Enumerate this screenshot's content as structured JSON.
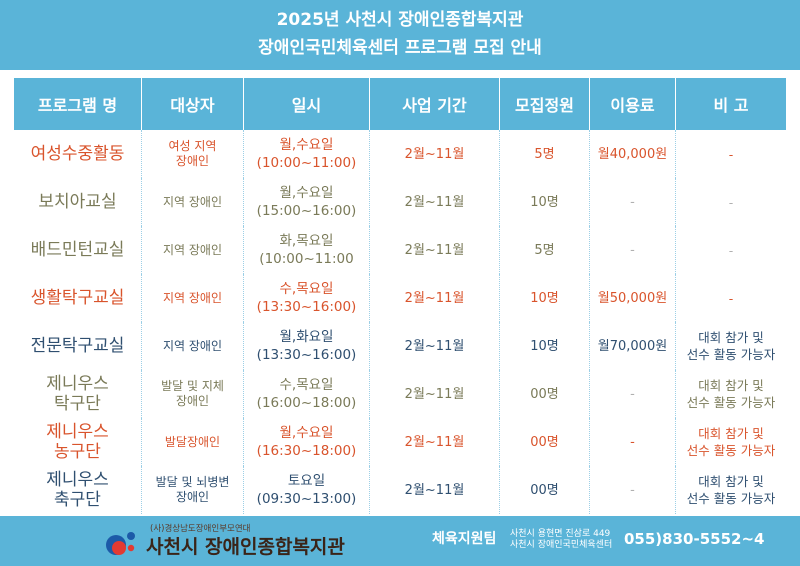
{
  "title": {
    "line1": "2025년 사천시 장애인종합복지관",
    "line2": "장애인국민체육센터 프로그램 모집 안내"
  },
  "columns": [
    "프로그램 명",
    "대상자",
    "일시",
    "사업 기간",
    "모집정원",
    "이용료",
    "비 고"
  ],
  "rows": [
    {
      "name": "여성수중활동",
      "target": "여성 지역\n장애인",
      "time": "월,수요일\n(10:00~11:00)",
      "period": "2월~11월",
      "capacity": "5명",
      "fee": "월40,000원",
      "note": "-"
    },
    {
      "name": "보치아교실",
      "target": "지역 장애인",
      "time": "월,수요일\n(15:00~16:00)",
      "period": "2월~11월",
      "capacity": "10명",
      "fee": "-",
      "note": "-"
    },
    {
      "name": "배드민턴교실",
      "target": "지역 장애인",
      "time": "화,목요일\n(10:00~11:00",
      "period": "2월~11월",
      "capacity": "5명",
      "fee": "-",
      "note": "-"
    },
    {
      "name": "생활탁구교실",
      "target": "지역 장애인",
      "time": "수,목요일\n(13:30~16:00)",
      "period": "2월~11월",
      "capacity": "10명",
      "fee": "월50,000원",
      "note": "-"
    },
    {
      "name": "전문탁구교실",
      "target": "지역 장애인",
      "time": "월,화요일\n(13:30~16:00)",
      "period": "2월~11월",
      "capacity": "10명",
      "fee": "월70,000원",
      "note": "대회 참가 및\n선수 활동 가능자"
    },
    {
      "name": "제니우스\n탁구단",
      "target": "발달 및 지체\n장애인",
      "time": "수,목요일\n(16:00~18:00)",
      "period": "2월~11월",
      "capacity": "00명",
      "fee": "-",
      "note": "대회 참가 및\n선수 활동 가능자"
    },
    {
      "name": "제니우스\n농구단",
      "target": "발달장애인",
      "time": "월,수요일\n(16:30~18:00)",
      "period": "2월~11월",
      "capacity": "00명",
      "fee": "-",
      "note": "대회 참가 및\n선수 활동 가능자"
    },
    {
      "name": "제니우스\n축구단",
      "target": "발달 및 뇌병변\n장애인",
      "time": "토요일\n(09:30~13:00)",
      "period": "2월~11월",
      "capacity": "00명",
      "fee": "-",
      "note": "대회 참가 및\n선수 활동 가능자"
    }
  ],
  "footer": {
    "org_sub": "(사)경상남도장애인부모연대",
    "org_name": "사천시 장애인종합복지관",
    "team": "체육지원팀",
    "address_line1": "사천시 용현면 진삼로 449",
    "address_line2": "사천시 장애인국민체육센터",
    "phone": "055)830-5552~4"
  },
  "colors": {
    "band": "#5ab4d8",
    "orange_text": "#d9542c",
    "olive_text": "#7a7a58",
    "navy_text": "#2f4f70",
    "logo_blue": "#1c5aa8",
    "logo_red": "#e23a32"
  }
}
